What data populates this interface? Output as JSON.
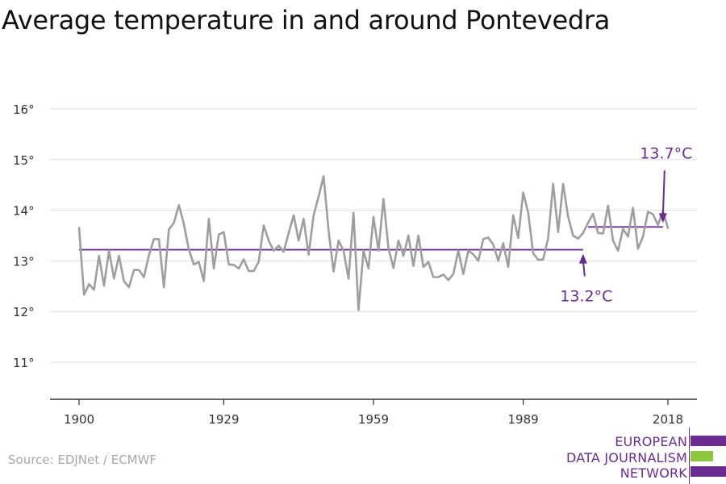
{
  "title": "Average temperature in and around Pontevedra",
  "source": "Source: EDJNet / ECMWF",
  "logo": {
    "lines": [
      "EUROPEAN",
      "DATA JOURNALISM",
      "NETWORK"
    ],
    "colors": [
      "#6a2c91",
      "#8dc63f",
      "#6a2c91"
    ]
  },
  "colors": {
    "series": "#9e9e9e",
    "average": "#6a2c91",
    "grid": "#dddddd",
    "axis": "#333333"
  },
  "chart_data": {
    "type": "line",
    "title": "Average temperature in and around Pontevedra",
    "xlabel": "",
    "ylabel": "",
    "xlim": [
      1900,
      2018
    ],
    "ylim": [
      10.2,
      16.3
    ],
    "x_ticks": [
      1900,
      1929,
      1959,
      1989,
      2018
    ],
    "x_tick_labels": [
      "1900",
      "1929",
      "1959",
      "1989",
      "2018"
    ],
    "y_ticks": [
      11,
      12,
      13,
      14,
      15,
      16
    ],
    "y_tick_labels": [
      "11°",
      "12°",
      "13°",
      "14°",
      "15°",
      "16°"
    ],
    "grid": true,
    "series": [
      {
        "x": [
          1900,
          1901,
          1902,
          1903,
          1904,
          1905,
          1906,
          1907,
          1908,
          1909,
          1910,
          1911,
          1912,
          1913,
          1914,
          1915,
          1916,
          1917,
          1918,
          1919,
          1920,
          1921,
          1922,
          1923,
          1924,
          1925,
          1926,
          1927,
          1928,
          1929,
          1930,
          1931,
          1932,
          1933,
          1934,
          1935,
          1936,
          1937,
          1938,
          1939,
          1940,
          1941,
          1942,
          1943,
          1944,
          1945,
          1946,
          1947,
          1948,
          1949,
          1950,
          1951,
          1952,
          1953,
          1954,
          1955,
          1956,
          1957,
          1958,
          1959,
          1960,
          1961,
          1962,
          1963,
          1964,
          1965,
          1966,
          1967,
          1968,
          1969,
          1970,
          1971,
          1972,
          1973,
          1974,
          1975,
          1976,
          1977,
          1978,
          1979,
          1980,
          1981,
          1982,
          1983,
          1984,
          1985,
          1986,
          1987,
          1988,
          1989,
          1990,
          1991,
          1992,
          1993,
          1994,
          1995,
          1996,
          1997,
          1998,
          1999,
          2000,
          2001,
          2002,
          2003,
          2004,
          2005,
          2006,
          2007,
          2008,
          2009,
          2010,
          2011,
          2012,
          2013,
          2014,
          2015,
          2016,
          2017,
          2018
        ],
        "values": [
          13.65,
          12.33,
          12.54,
          12.43,
          13.1,
          12.51,
          13.2,
          12.65,
          13.1,
          12.6,
          12.48,
          12.82,
          12.82,
          12.68,
          13.11,
          13.43,
          13.43,
          12.48,
          13.62,
          13.75,
          14.1,
          13.73,
          13.22,
          12.93,
          12.98,
          12.6,
          13.83,
          12.85,
          13.52,
          13.57,
          12.93,
          12.92,
          12.85,
          13.03,
          12.8,
          12.8,
          12.98,
          13.7,
          13.4,
          13.2,
          13.3,
          13.18,
          13.55,
          13.9,
          13.4,
          13.83,
          13.12,
          13.9,
          14.27,
          14.67,
          13.6,
          12.79,
          13.4,
          13.2,
          12.65,
          13.95,
          12.03,
          13.2,
          12.85,
          13.87,
          13.2,
          14.22,
          13.25,
          12.86,
          13.4,
          13.1,
          13.5,
          12.9,
          13.5,
          12.88,
          12.98,
          12.68,
          12.68,
          12.73,
          12.62,
          12.74,
          13.2,
          12.74,
          13.2,
          13.13,
          13.0,
          13.43,
          13.46,
          13.32,
          13.0,
          13.35,
          12.88,
          13.9,
          13.45,
          14.35,
          13.95,
          13.15,
          13.02,
          13.03,
          13.45,
          14.52,
          13.57,
          14.52,
          13.87,
          13.5,
          13.44,
          13.55,
          13.75,
          13.93,
          13.55,
          13.54,
          14.09,
          13.4,
          13.2,
          13.63,
          13.48,
          14.05,
          13.24,
          13.48,
          13.97,
          13.92,
          13.71,
          13.98,
          13.65
        ]
      }
    ],
    "averages": [
      {
        "x_start": 1900,
        "x_end": 2001,
        "value": 13.22
      },
      {
        "x_start": 2002,
        "x_end": 2017,
        "value": 13.67
      }
    ],
    "annotations": [
      {
        "text": "13.2°C",
        "x": 2001,
        "y": 13.22,
        "placement": "below"
      },
      {
        "text": "13.7°C",
        "x": 2017,
        "y": 13.67,
        "placement": "above"
      }
    ]
  }
}
